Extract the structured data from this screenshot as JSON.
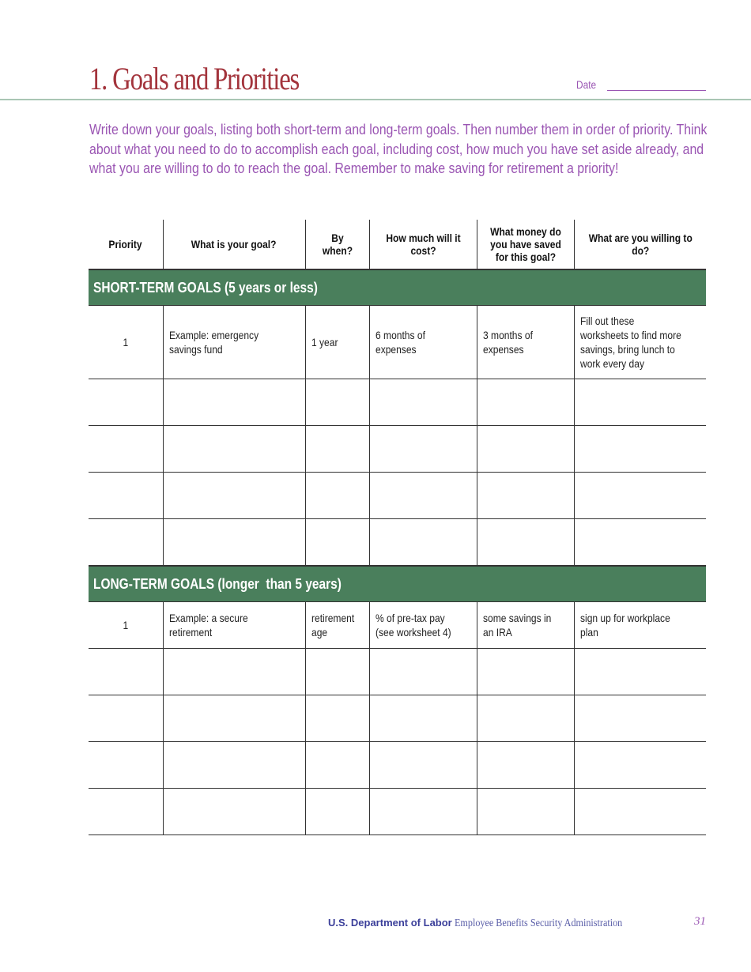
{
  "header": {
    "title": "1. Goals and Priorities",
    "date_label": "Date"
  },
  "intro": "Write down your goals, listing both short-term and long-term goals. Then number them in order of priority. Think about what you need to do to accomplish each goal, including cost, how much you have set aside already, and what you are willing to do to reach the goal. Remember to make saving for retirement a priority!",
  "table": {
    "columns": [
      "Priority",
      "What is your goal?",
      "By when?",
      "How much will it cost?",
      "What money do you have saved for this goal?",
      "What are you willing to do?"
    ],
    "short_term": {
      "heading": "SHORT-TERM GOALS (5 years or less)",
      "example": [
        "1",
        "Example: emergency savings fund",
        "1 year",
        "6 months of expenses",
        "3 months of expenses",
        "Fill out these worksheets to find more savings, bring lunch to work every day"
      ],
      "blank_rows": 4
    },
    "long_term": {
      "heading": "LONG-TERM GOALS (longer  than 5 years)",
      "example": [
        "1",
        "Example: a secure retirement",
        "retirement age",
        "% of pre-tax pay (see worksheet 4)",
        "some savings in an IRA",
        "sign up for workplace plan"
      ],
      "blank_rows": 4
    }
  },
  "footer": {
    "agency": "U.S. Department of Labor",
    "division": "Employee Benefits Security Administration",
    "page_number": "31"
  },
  "colors": {
    "title": "#a3343c",
    "body_text": "#9a55b3",
    "section_bar": "#4a7f5c",
    "rule": "#a9c6b4",
    "footer": "#3b3f9a"
  }
}
